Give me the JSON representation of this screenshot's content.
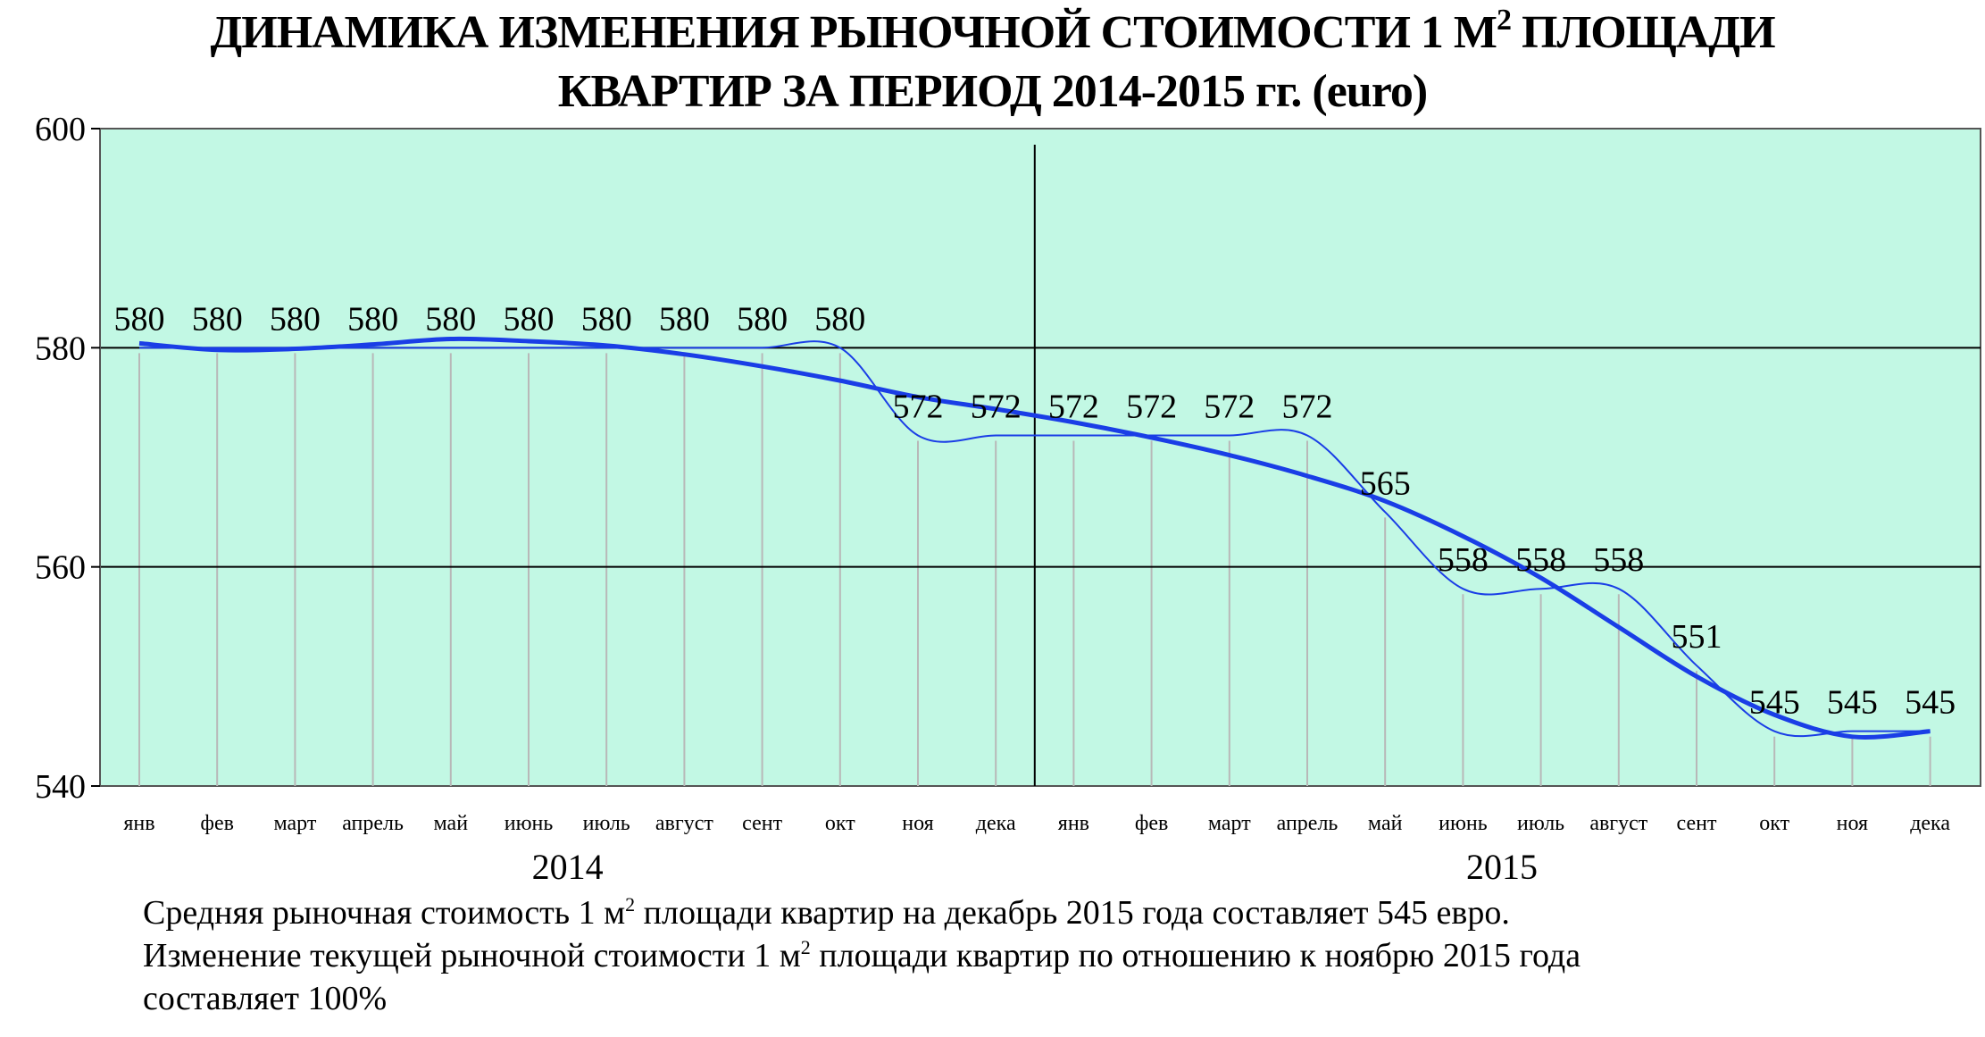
{
  "title": {
    "line1_pre": "ДИНАМИКА ИЗМЕНЕНИЯ РЫНОЧНОЙ СТОИМОСТИ 1 М",
    "line1_sup": "2",
    "line1_post": " ПЛОЩАДИ",
    "line2": "КВАРТИР ЗА ПЕРИОД 2014-2015 гг. (euro)"
  },
  "chart_data": {
    "type": "line",
    "ylim": [
      540,
      600
    ],
    "yticks": [
      540,
      560,
      580,
      600
    ],
    "categories": [
      "янв",
      "фев",
      "март",
      "апрель",
      "май",
      "июнь",
      "июль",
      "август",
      "сент",
      "окт",
      "ноя",
      "дека",
      "янв",
      "фев",
      "март",
      "апрель",
      "май",
      "июнь",
      "июль",
      "август",
      "сент",
      "окт",
      "ноя",
      "дека"
    ],
    "years": [
      "2014",
      "2015"
    ],
    "values": [
      580,
      580,
      580,
      580,
      580,
      580,
      580,
      580,
      580,
      580,
      572,
      572,
      572,
      572,
      572,
      572,
      565,
      558,
      558,
      558,
      551,
      545,
      545,
      545
    ],
    "data_labels": [
      "580",
      "580",
      "580",
      "580",
      "580",
      "580",
      "580",
      "580",
      "580",
      "580",
      "572",
      "572",
      "572",
      "572",
      "572",
      "572",
      "565",
      "558",
      "558",
      "558",
      "551",
      "545",
      "545",
      "545"
    ],
    "trend": [
      580.4,
      579.8,
      579.9,
      580.3,
      580.8,
      580.6,
      580.2,
      579.4,
      578.3,
      577.0,
      575.5,
      574.4,
      573.2,
      571.8,
      570.2,
      568.3,
      566.0,
      562.8,
      559.0,
      554.5,
      550.0,
      546.5,
      544.5,
      545.0
    ],
    "grid": true,
    "colors": {
      "plot_bg": "#c2f8e4",
      "line": "#1a3ee6",
      "grid": "#b8b8b8"
    }
  },
  "notes": {
    "line1_pre": "Средняя рыночная стоимость 1 м",
    "line1_sup": "2",
    "line1_post": " площади квартир на декабрь 2015 года составляет 545 евро.",
    "line2_pre": "Изменение текущей рыночной стоимости 1 м",
    "line2_sup": "2",
    "line2_post": " площади квартир по отношению к ноябрю 2015 года",
    "line3": "составляет  100%"
  }
}
